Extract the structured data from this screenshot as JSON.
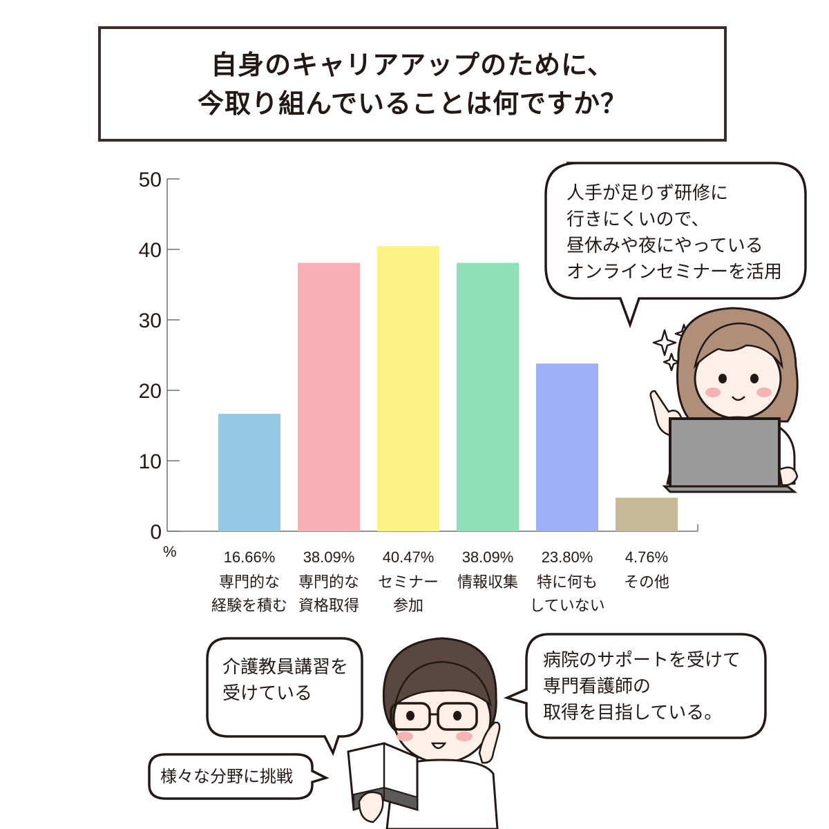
{
  "title": {
    "line1": "自身のキャリアアップのために、",
    "line2": "今取り組んでいることは何ですか？"
  },
  "chart_data": {
    "type": "bar",
    "ylim": [
      0,
      50
    ],
    "yticks": [
      0,
      10,
      20,
      30,
      40,
      50
    ],
    "ylabel": "%",
    "grid": false,
    "categories": [
      [
        "専門的な",
        "経験を積む"
      ],
      [
        "専門的な",
        "資格取得"
      ],
      [
        "セミナー",
        "参加"
      ],
      [
        "情報収集"
      ],
      [
        "特に何も",
        "していない"
      ],
      [
        "その他"
      ]
    ],
    "value_labels": [
      "16.66%",
      "38.09%",
      "40.47%",
      "38.09%",
      "23.80%",
      "4.76%"
    ],
    "values": [
      16.66,
      38.09,
      40.47,
      38.09,
      23.8,
      4.76
    ],
    "colors": [
      "#93c9e2",
      "#f8b0b4",
      "#fbf384",
      "#8fe0b6",
      "#9daff9",
      "#c8b998"
    ]
  },
  "bubbles": {
    "top_right": [
      "人手が足りず研修に",
      "行きにくいので、",
      "昼休みや夜にやっている",
      "オンラインセミナーを活用"
    ],
    "left": [
      "介護教員講習を",
      "受けている"
    ],
    "right": [
      "病院のサポートを受けて",
      "専門看護師の",
      "取得を目指している。"
    ],
    "bottom_left": [
      "様々な分野に挑戦"
    ]
  },
  "icons": [
    "sparkle-icon",
    "nurse-laptop-illustration",
    "nurse-book-illustration"
  ]
}
